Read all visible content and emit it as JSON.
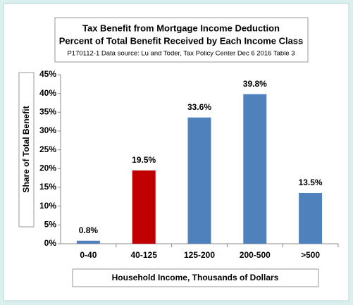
{
  "chart_data": {
    "type": "bar",
    "title": "Tax Benefit from Mortgage Income Deduction",
    "subtitle": "Percent of Total Benefit Received by Each Income Class",
    "source": "P170112-1 Data source: Lu and Toder, Tax Policy Center Dec 6 2016 Table 3",
    "y_label": "Share of Total Benefit",
    "x_label": "Household Income, Thousands of Dollars",
    "categories": [
      "0-40",
      "40-125",
      "125-200",
      "200-500",
      ">500"
    ],
    "values": [
      0.8,
      19.5,
      33.6,
      39.8,
      13.5
    ],
    "value_labels": [
      "0.8%",
      "19.5%",
      "33.6%",
      "39.8%",
      "13.5%"
    ],
    "colors": [
      "#4f81bd",
      "#c00000",
      "#4f81bd",
      "#4f81bd",
      "#4f81bd"
    ],
    "ylim": [
      0,
      45
    ],
    "yticks": [
      {
        "value": 0,
        "label": "0%"
      },
      {
        "value": 5,
        "label": "5%"
      },
      {
        "value": 10,
        "label": "10%"
      },
      {
        "value": 15,
        "label": "15%"
      },
      {
        "value": 20,
        "label": "20%"
      },
      {
        "value": 25,
        "label": "25%"
      },
      {
        "value": 30,
        "label": "30%"
      },
      {
        "value": 35,
        "label": "35%"
      },
      {
        "value": 40,
        "label": "40%"
      },
      {
        "value": 45,
        "label": "45%"
      }
    ],
    "grid": false
  }
}
